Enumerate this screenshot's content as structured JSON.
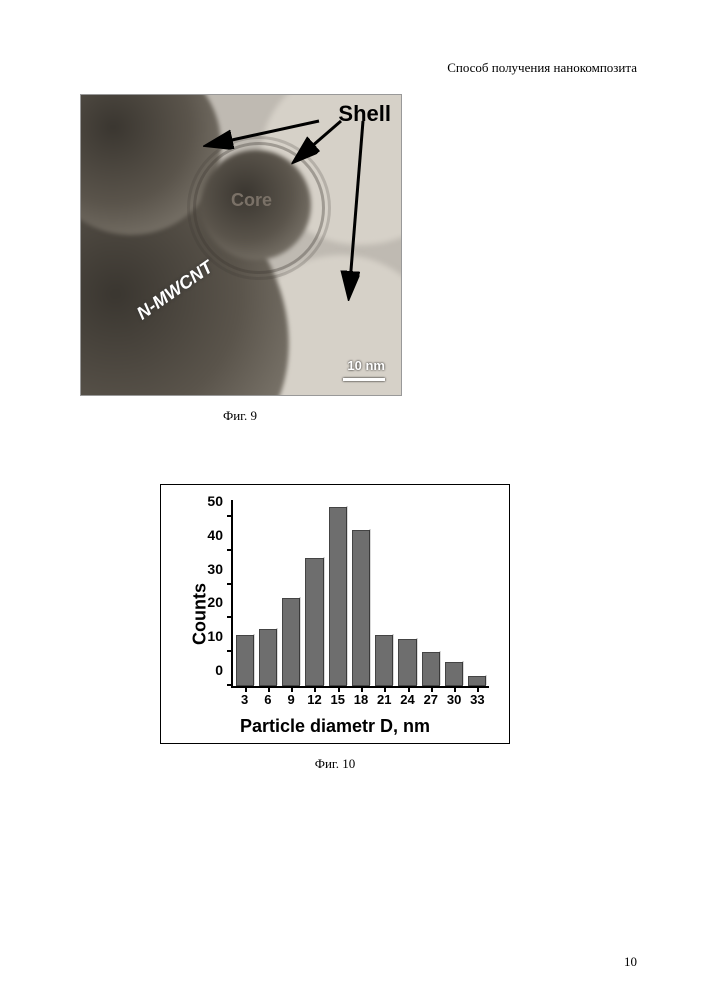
{
  "header": {
    "title": "Способ получения нанокомпозита"
  },
  "fig9": {
    "caption": "Фиг. 9",
    "labels": {
      "shell": "Shell",
      "core": "Core",
      "cnt": "N-MWCNT",
      "scale_text": "10 nm"
    },
    "colors": {
      "shell_label": "#000000",
      "core_label": "#7a7167",
      "cnt_label": "#ffffff",
      "scale_label": "#ffffff",
      "background": "#bfbab2"
    },
    "fontsize": {
      "shell": 22,
      "core": 18,
      "cnt": 18,
      "scale": 13
    }
  },
  "fig10": {
    "caption": "Фиг. 10",
    "chart": {
      "type": "bar",
      "x_label": "Particle diametr D, nm",
      "y_label": "Counts",
      "categories": [
        "3",
        "6",
        "9",
        "12",
        "15",
        "18",
        "21",
        "24",
        "27",
        "30",
        "33"
      ],
      "values": [
        15,
        17,
        26,
        38,
        53,
        46,
        15,
        14,
        10,
        7,
        3
      ],
      "bar_color": "#6e6e6e",
      "bar_border": "#444444",
      "background": "#ffffff",
      "axis_color": "#000000",
      "y_ticks": [
        0,
        10,
        20,
        30,
        40,
        50
      ],
      "ylim": [
        0,
        55
      ],
      "bar_width_ratio": 0.78,
      "label_fontsize": 18,
      "tick_fontsize": 14,
      "font_family": "Arial"
    }
  },
  "page_number": "10"
}
